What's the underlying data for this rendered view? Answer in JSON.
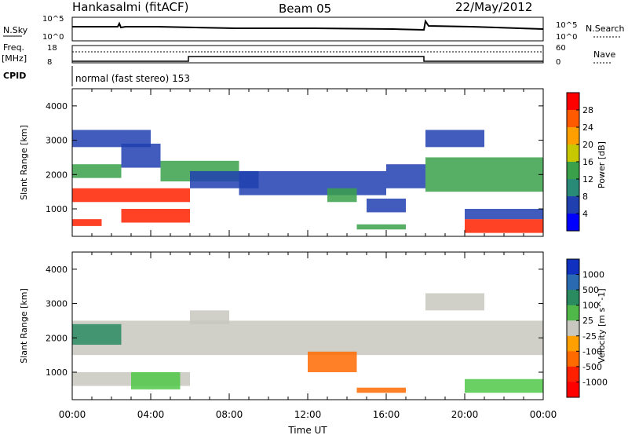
{
  "header": {
    "station": "Hankasalmi (fitACF)",
    "beam": "Beam 05",
    "date": "22/May/2012"
  },
  "status_panels": {
    "nsky_label": "N.Sky",
    "nsky_ticks": [
      "10^5",
      "10^0"
    ],
    "nsearch_label": "N.Search",
    "nsearch_ticks": [
      "10^5",
      "10^0"
    ],
    "freq_label": "Freq.",
    "freq_unit": "[MHz]",
    "freq_ticks": [
      "18",
      "8"
    ],
    "nave_label": "Nave",
    "nave_ticks": [
      "60",
      "0"
    ],
    "cpid_label": "CPID",
    "cpid_text": "normal (fast stereo) 153"
  },
  "chart_data": [
    {
      "type": "heatmap",
      "name": "power",
      "ylabel": "Slant Range [km]",
      "ylim": [
        200,
        4500
      ],
      "yticks": [
        1000,
        2000,
        3000,
        4000
      ],
      "xlim": [
        0,
        24
      ],
      "colorbar_label": "Power [dB]",
      "colorbar_ticks": [
        "28",
        "24",
        "20",
        "16",
        "12",
        "8",
        "4"
      ],
      "colorbar_colors": [
        "#ff0000",
        "#ff5a00",
        "#ffa000",
        "#c8c800",
        "#3aa04a",
        "#2a8a78",
        "#2040b0",
        "#0000ff"
      ],
      "bands": [
        {
          "t0": 0.0,
          "t1": 6.0,
          "r0": 1200,
          "r1": 1600,
          "level": "high"
        },
        {
          "t0": 0.0,
          "t1": 2.5,
          "r0": 1900,
          "r1": 2300,
          "level": "mid"
        },
        {
          "t0": 2.5,
          "t1": 6.0,
          "r0": 600,
          "r1": 1000,
          "level": "high"
        },
        {
          "t0": 0.0,
          "t1": 1.5,
          "r0": 500,
          "r1": 700,
          "level": "high"
        },
        {
          "t0": 2.5,
          "t1": 4.5,
          "r0": 2200,
          "r1": 2900,
          "level": "low"
        },
        {
          "t0": 0.0,
          "t1": 4.0,
          "r0": 2800,
          "r1": 3300,
          "level": "low"
        },
        {
          "t0": 4.5,
          "t1": 8.5,
          "r0": 1800,
          "r1": 2400,
          "level": "mid"
        },
        {
          "t0": 6.0,
          "t1": 9.5,
          "r0": 1600,
          "r1": 2100,
          "level": "low"
        },
        {
          "t0": 8.5,
          "t1": 16.0,
          "r0": 1400,
          "r1": 2100,
          "level": "low"
        },
        {
          "t0": 13.0,
          "t1": 14.5,
          "r0": 1200,
          "r1": 1600,
          "level": "mid"
        },
        {
          "t0": 15.0,
          "t1": 17.0,
          "r0": 900,
          "r1": 1300,
          "level": "low"
        },
        {
          "t0": 16.0,
          "t1": 18.0,
          "r0": 1600,
          "r1": 2300,
          "level": "low"
        },
        {
          "t0": 14.5,
          "t1": 17.0,
          "r0": 400,
          "r1": 550,
          "level": "mid"
        },
        {
          "t0": 18.0,
          "t1": 24.0,
          "r0": 1500,
          "r1": 2500,
          "level": "mid"
        },
        {
          "t0": 18.0,
          "t1": 21.0,
          "r0": 2800,
          "r1": 3300,
          "level": "low"
        },
        {
          "t0": 20.0,
          "t1": 24.0,
          "r0": 300,
          "r1": 700,
          "level": "high"
        },
        {
          "t0": 20.0,
          "t1": 24.0,
          "r0": 700,
          "r1": 1000,
          "level": "low"
        }
      ]
    },
    {
      "type": "heatmap",
      "name": "velocity",
      "ylabel": "Slant Range [km]",
      "ylim": [
        200,
        4500
      ],
      "yticks": [
        1000,
        2000,
        3000,
        4000
      ],
      "xlim": [
        0,
        24
      ],
      "xticks": [
        "00:00",
        "04:00",
        "08:00",
        "12:00",
        "16:00",
        "20:00",
        "00:00"
      ],
      "xlabel": "Time UT",
      "colorbar_label": "Velocity [m s^-1]",
      "colorbar_ticks": [
        "1000",
        "500",
        "100",
        "25",
        "-25",
        "-100",
        "-500",
        "-1000"
      ],
      "colorbar_colors": [
        "#1030c0",
        "#2a6ab0",
        "#2a8a60",
        "#50b848",
        "#c8c8c0",
        "#ffa000",
        "#ff6a00",
        "#ff2000",
        "#ff0000"
      ],
      "bands": [
        {
          "t0": 0.0,
          "t1": 24.0,
          "r0": 1500,
          "r1": 2500,
          "level": "gray"
        },
        {
          "t0": 0.0,
          "t1": 2.5,
          "r0": 1800,
          "r1": 2400,
          "level": "green"
        },
        {
          "t0": 0.0,
          "t1": 6.0,
          "r0": 600,
          "r1": 1000,
          "level": "gray"
        },
        {
          "t0": 3.0,
          "t1": 5.5,
          "r0": 500,
          "r1": 1000,
          "level": "lightgreen"
        },
        {
          "t0": 6.0,
          "t1": 8.0,
          "r0": 2400,
          "r1": 2800,
          "level": "gray"
        },
        {
          "t0": 12.0,
          "t1": 14.5,
          "r0": 1000,
          "r1": 1600,
          "level": "orange"
        },
        {
          "t0": 14.5,
          "t1": 17.0,
          "r0": 400,
          "r1": 550,
          "level": "orange"
        },
        {
          "t0": 18.0,
          "t1": 21.0,
          "r0": 2800,
          "r1": 3300,
          "level": "gray"
        },
        {
          "t0": 20.0,
          "t1": 24.0,
          "r0": 400,
          "r1": 800,
          "level": "lightgreen"
        }
      ]
    }
  ]
}
